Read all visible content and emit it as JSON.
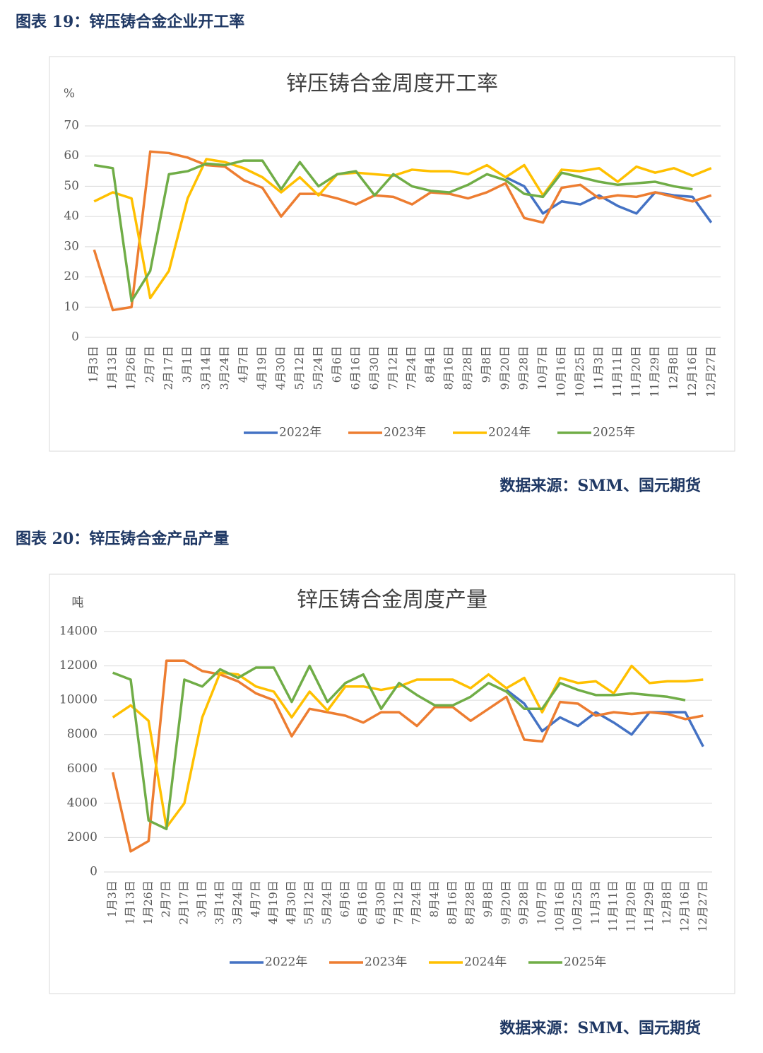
{
  "chart_data": [
    {
      "type": "line",
      "caption": "图表 19：锌压铸合金企业开工率",
      "title": "锌压铸合金周度开工率",
      "y_label": "%",
      "source": "数据来源：SMM、国元期货",
      "categories": [
        "1月3日",
        "1月13日",
        "1月26日",
        "2月7日",
        "2月17日",
        "3月1日",
        "3月14日",
        "3月24日",
        "4月7日",
        "4月19日",
        "4月30日",
        "5月12日",
        "5月24日",
        "6月6日",
        "6月16日",
        "6月30日",
        "7月12日",
        "7月24日",
        "8月4日",
        "8月16日",
        "8月28日",
        "9月8日",
        "9月20日",
        "9月28日",
        "10月7日",
        "10月16日",
        "10月25日",
        "11月3日",
        "11月11日",
        "11月20日",
        "11月29日",
        "12月8日",
        "12月16日",
        "12月27日"
      ],
      "series": [
        {
          "name": "2022年",
          "color": "#4472c4",
          "values": [
            null,
            null,
            null,
            null,
            null,
            null,
            null,
            null,
            null,
            null,
            null,
            null,
            null,
            null,
            null,
            null,
            null,
            null,
            null,
            null,
            null,
            null,
            53,
            50,
            41,
            45,
            44,
            47,
            43.5,
            41,
            48,
            47,
            46.5,
            38
          ]
        },
        {
          "name": "2023年",
          "color": "#ed7d31",
          "values": [
            29,
            9,
            10,
            61.5,
            61,
            59.5,
            57,
            56.5,
            52,
            49.5,
            40,
            47.5,
            47.5,
            46,
            44,
            47,
            46.5,
            44,
            48,
            47.5,
            46,
            48,
            51,
            39.5,
            38,
            49.5,
            50.5,
            46,
            47,
            46.5,
            48,
            46.5,
            45,
            47
          ]
        },
        {
          "name": "2024年",
          "color": "#ffc000",
          "values": [
            45,
            48,
            46,
            13,
            22,
            46,
            59,
            58,
            56,
            53,
            48,
            53,
            47,
            54,
            54.5,
            54,
            53.5,
            55.5,
            55,
            55,
            54,
            57,
            53,
            57,
            47,
            55.5,
            55,
            56,
            51.5,
            56.5,
            54.5,
            56,
            53.5,
            56
          ]
        },
        {
          "name": "2025年",
          "color": "#70ad47",
          "values": [
            57,
            56,
            12,
            22,
            54,
            55,
            57.5,
            57,
            58.5,
            58.5,
            49,
            58,
            50,
            54,
            55,
            47,
            54,
            50,
            48.5,
            48,
            50.5,
            54,
            52,
            47.5,
            46.5,
            54.5,
            53,
            51.5,
            50.5,
            51,
            51.5,
            50,
            49,
            null
          ]
        }
      ],
      "ylim": [
        0,
        70
      ],
      "yticks": [
        0,
        10,
        20,
        30,
        40,
        50,
        60,
        70
      ],
      "grid": true,
      "legend": "bottom"
    },
    {
      "type": "line",
      "caption": "图表 20：锌压铸合金产品产量",
      "title": "锌压铸合金周度产量",
      "y_label": "吨",
      "source": "数据来源：SMM、国元期货",
      "categories": [
        "1月3日",
        "1月13日",
        "1月26日",
        "2月7日",
        "2月17日",
        "3月1日",
        "3月14日",
        "3月24日",
        "4月7日",
        "4月19日",
        "4月30日",
        "5月12日",
        "5月24日",
        "6月6日",
        "6月16日",
        "6月30日",
        "7月12日",
        "7月24日",
        "8月4日",
        "8月16日",
        "8月28日",
        "9月8日",
        "9月20日",
        "9月28日",
        "10月7日",
        "10月16日",
        "10月25日",
        "11月3日",
        "11月11日",
        "11月20日",
        "11月29日",
        "12月8日",
        "12月16日",
        "12月27日"
      ],
      "series": [
        {
          "name": "2022年",
          "color": "#4472c4",
          "values": [
            null,
            null,
            null,
            null,
            null,
            null,
            null,
            null,
            null,
            null,
            null,
            null,
            null,
            null,
            null,
            null,
            null,
            null,
            null,
            null,
            null,
            null,
            10600,
            9800,
            8200,
            9000,
            8500,
            9300,
            8700,
            8000,
            9300,
            9300,
            9300,
            7300
          ]
        },
        {
          "name": "2023年",
          "color": "#ed7d31",
          "values": [
            5800,
            1200,
            1800,
            12300,
            12300,
            11700,
            11500,
            11100,
            10400,
            10000,
            7900,
            9500,
            9300,
            9100,
            8700,
            9300,
            9300,
            8500,
            9600,
            9600,
            8800,
            9500,
            10200,
            7700,
            7600,
            9900,
            9800,
            9100,
            9300,
            9200,
            9300,
            9200,
            8900,
            9100
          ]
        },
        {
          "name": "2024年",
          "color": "#ffc000",
          "values": [
            9000,
            9700,
            8800,
            2600,
            4000,
            9000,
            11600,
            11500,
            10800,
            10500,
            9000,
            10500,
            9400,
            10800,
            10800,
            10600,
            10800,
            11200,
            11200,
            11200,
            10700,
            11500,
            10700,
            11300,
            9300,
            11300,
            11000,
            11100,
            10400,
            12000,
            11000,
            11100,
            11100,
            11200
          ]
        },
        {
          "name": "2025年",
          "color": "#70ad47",
          "values": [
            11600,
            11200,
            3000,
            2500,
            11200,
            10800,
            11800,
            11300,
            11900,
            11900,
            9900,
            12000,
            9900,
            11000,
            11500,
            9500,
            11000,
            10300,
            9700,
            9700,
            10200,
            11000,
            10500,
            9500,
            9500,
            11000,
            10600,
            10300,
            10300,
            10400,
            10300,
            10200,
            10000,
            null
          ]
        }
      ],
      "ylim": [
        0,
        14000
      ],
      "yticks": [
        0,
        2000,
        4000,
        6000,
        8000,
        10000,
        12000,
        14000
      ],
      "grid": true,
      "legend": "bottom"
    }
  ]
}
